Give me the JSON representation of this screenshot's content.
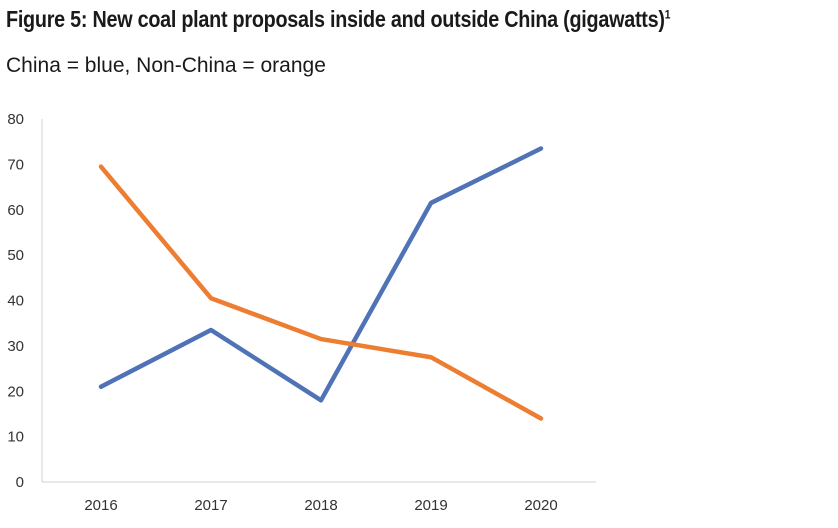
{
  "title": "Figure 5: New coal plant proposals inside and outside China (gigawatts)",
  "title_superscript": "1",
  "subtitle": "China = blue, Non-China = orange",
  "chart_data": {
    "type": "line",
    "title": "Figure 5: New coal plant proposals inside and outside China (gigawatts)",
    "subtitle": "China = blue, Non-China = orange",
    "x": [
      "2016",
      "2017",
      "2018",
      "2019",
      "2020"
    ],
    "ylim": [
      0,
      80
    ],
    "yticks": [
      "0",
      "10",
      "20",
      "30",
      "40",
      "50",
      "60",
      "70",
      "80"
    ],
    "grid": false,
    "series": [
      {
        "name": "China",
        "color": "#4f73b6",
        "values": [
          21,
          33.5,
          18,
          61.5,
          73.5
        ]
      },
      {
        "name": "Non-China",
        "color": "#ed7d31",
        "values": [
          69.5,
          40.5,
          31.5,
          27.5,
          14
        ]
      }
    ]
  },
  "colors": {
    "axis": "#d0d0d0",
    "text": "#1a1a1a"
  }
}
